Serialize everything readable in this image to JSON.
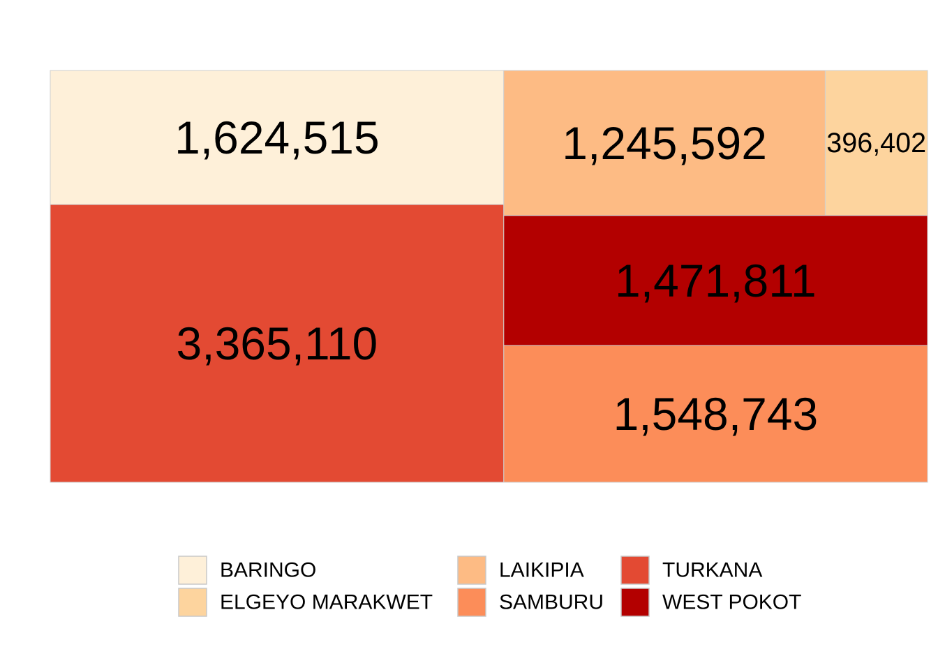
{
  "chart_data": {
    "type": "treemap",
    "title": "",
    "legend": {
      "position": "bottom",
      "entries": [
        {
          "name": "BARINGO",
          "color": "#FEF0D9"
        },
        {
          "name": "ELGEYO MARAKWET",
          "color": "#FDD49E"
        },
        {
          "name": "LAIKIPIA",
          "color": "#FDBB84"
        },
        {
          "name": "SAMBURU",
          "color": "#FC8D59"
        },
        {
          "name": "TURKANA",
          "color": "#E34A33"
        },
        {
          "name": "WEST POKOT",
          "color": "#B30000"
        }
      ]
    },
    "tiles": [
      {
        "name": "BARINGO",
        "value": 1624515,
        "label": "1,624,515",
        "color": "#FEF0D9"
      },
      {
        "name": "TURKANA",
        "value": 3365110,
        "label": "3,365,110",
        "color": "#E34A33"
      },
      {
        "name": "LAIKIPIA",
        "value": 1245592,
        "label": "1,245,592",
        "color": "#FDBB84"
      },
      {
        "name": "ELGEYO MARAKWET",
        "value": 396402,
        "label": "396,402",
        "color": "#FDD49E"
      },
      {
        "name": "WEST POKOT",
        "value": 1471811,
        "label": "1,471,811",
        "color": "#B30000"
      },
      {
        "name": "SAMBURU",
        "value": 1548743,
        "label": "1,548,743",
        "color": "#FC8D59"
      }
    ]
  }
}
